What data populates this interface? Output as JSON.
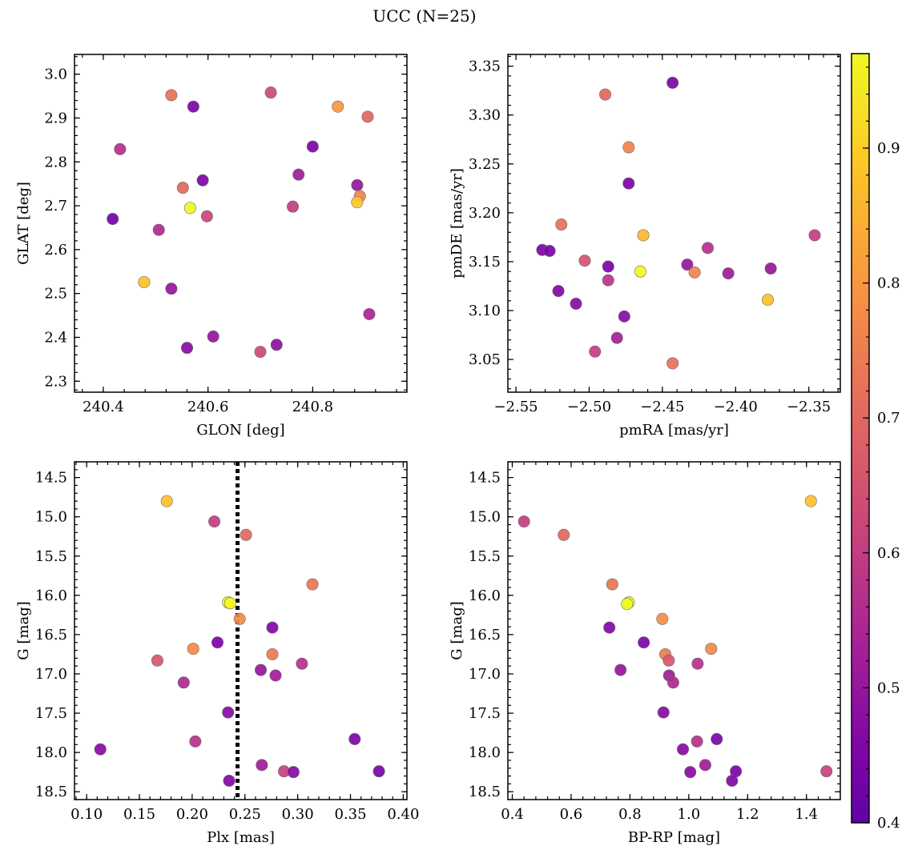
{
  "figure": {
    "title": "UCC (N=25)"
  },
  "colorbar": {
    "min": 0.4,
    "max": 0.97,
    "colormap": "plasma",
    "ticks": [
      0.4,
      0.5,
      0.6,
      0.7,
      0.8,
      0.9
    ],
    "tick_labels": [
      "0.4",
      "0.5",
      "0.6",
      "0.7",
      "0.8",
      "0.9"
    ]
  },
  "chart_data": [
    {
      "type": "scatter",
      "id": "glon-glat",
      "xlabel": "GLON [deg]",
      "ylabel": "GLAT [deg]",
      "xlim": [
        240.345,
        240.98
      ],
      "ylim": [
        2.275,
        3.045
      ],
      "y_inverted": false,
      "xticks": [
        240.4,
        240.6,
        240.8
      ],
      "xtick_labels": [
        "240.4",
        "240.6",
        "240.8"
      ],
      "yticks": [
        2.3,
        2.4,
        2.5,
        2.6,
        2.7,
        2.8,
        2.9,
        3.0
      ],
      "ytick_labels": [
        "2.3",
        "2.4",
        "2.5",
        "2.6",
        "2.7",
        "2.8",
        "2.9",
        "3.0"
      ],
      "points": [
        {
          "x": 240.53,
          "y": 2.952,
          "c": 0.72
        },
        {
          "x": 240.572,
          "y": 2.926,
          "c": 0.45
        },
        {
          "x": 240.72,
          "y": 2.958,
          "c": 0.63
        },
        {
          "x": 240.848,
          "y": 2.926,
          "c": 0.8
        },
        {
          "x": 240.905,
          "y": 2.903,
          "c": 0.7
        },
        {
          "x": 240.432,
          "y": 2.829,
          "c": 0.57
        },
        {
          "x": 240.8,
          "y": 2.835,
          "c": 0.45
        },
        {
          "x": 240.773,
          "y": 2.771,
          "c": 0.52
        },
        {
          "x": 240.59,
          "y": 2.758,
          "c": 0.45
        },
        {
          "x": 240.885,
          "y": 2.747,
          "c": 0.5
        },
        {
          "x": 240.552,
          "y": 2.741,
          "c": 0.7
        },
        {
          "x": 240.89,
          "y": 2.722,
          "c": 0.76
        },
        {
          "x": 240.885,
          "y": 2.708,
          "c": 0.89
        },
        {
          "x": 240.566,
          "y": 2.695,
          "c": 0.97
        },
        {
          "x": 240.762,
          "y": 2.698,
          "c": 0.6
        },
        {
          "x": 240.598,
          "y": 2.676,
          "c": 0.62
        },
        {
          "x": 240.418,
          "y": 2.67,
          "c": 0.43
        },
        {
          "x": 240.506,
          "y": 2.645,
          "c": 0.55
        },
        {
          "x": 240.478,
          "y": 2.526,
          "c": 0.88
        },
        {
          "x": 240.53,
          "y": 2.511,
          "c": 0.5
        },
        {
          "x": 240.908,
          "y": 2.453,
          "c": 0.54
        },
        {
          "x": 240.61,
          "y": 2.402,
          "c": 0.5
        },
        {
          "x": 240.56,
          "y": 2.376,
          "c": 0.47
        },
        {
          "x": 240.731,
          "y": 2.383,
          "c": 0.48
        },
        {
          "x": 240.7,
          "y": 2.367,
          "c": 0.63
        }
      ]
    },
    {
      "type": "scatter",
      "id": "pmra-pmde",
      "xlabel": "pmRA [mas/yr]",
      "ylabel": "pmDE [mas/yr]",
      "xlim": [
        -2.5555,
        -2.3285
      ],
      "ylim": [
        3.0165,
        3.362
      ],
      "y_inverted": false,
      "xticks": [
        -2.55,
        -2.5,
        -2.45,
        -2.4,
        -2.35
      ],
      "xtick_labels": [
        "−2.55",
        "−2.50",
        "−2.45",
        "−2.40",
        "−2.35"
      ],
      "yticks": [
        3.05,
        3.1,
        3.15,
        3.2,
        3.25,
        3.3,
        3.35
      ],
      "ytick_labels": [
        "3.05",
        "3.10",
        "3.15",
        "3.20",
        "3.25",
        "3.30",
        "3.35"
      ],
      "points": [
        {
          "x": -2.443,
          "y": 3.333,
          "c": 0.45
        },
        {
          "x": -2.489,
          "y": 3.321,
          "c": 0.7
        },
        {
          "x": -2.473,
          "y": 3.267,
          "c": 0.76
        },
        {
          "x": -2.473,
          "y": 3.23,
          "c": 0.45
        },
        {
          "x": -2.519,
          "y": 3.188,
          "c": 0.72
        },
        {
          "x": -2.463,
          "y": 3.177,
          "c": 0.86
        },
        {
          "x": -2.346,
          "y": 3.177,
          "c": 0.6
        },
        {
          "x": -2.419,
          "y": 3.164,
          "c": 0.57
        },
        {
          "x": -2.532,
          "y": 3.162,
          "c": 0.45
        },
        {
          "x": -2.527,
          "y": 3.161,
          "c": 0.45
        },
        {
          "x": -2.503,
          "y": 3.151,
          "c": 0.65
        },
        {
          "x": -2.433,
          "y": 3.147,
          "c": 0.5
        },
        {
          "x": -2.487,
          "y": 3.145,
          "c": 0.44
        },
        {
          "x": -2.376,
          "y": 3.143,
          "c": 0.5
        },
        {
          "x": -2.465,
          "y": 3.14,
          "c": 0.97
        },
        {
          "x": -2.428,
          "y": 3.139,
          "c": 0.76
        },
        {
          "x": -2.405,
          "y": 3.138,
          "c": 0.52
        },
        {
          "x": -2.487,
          "y": 3.131,
          "c": 0.58
        },
        {
          "x": -2.521,
          "y": 3.12,
          "c": 0.46
        },
        {
          "x": -2.378,
          "y": 3.111,
          "c": 0.88
        },
        {
          "x": -2.509,
          "y": 3.107,
          "c": 0.47
        },
        {
          "x": -2.476,
          "y": 3.094,
          "c": 0.47
        },
        {
          "x": -2.481,
          "y": 3.072,
          "c": 0.53
        },
        {
          "x": -2.496,
          "y": 3.058,
          "c": 0.6
        },
        {
          "x": -2.443,
          "y": 3.046,
          "c": 0.72
        }
      ]
    },
    {
      "type": "scatter",
      "id": "plx-g",
      "xlabel": "Plx [mas]",
      "ylabel": "G [mag]",
      "xlim": [
        0.0885,
        0.4035
      ],
      "ylim": [
        18.6,
        14.3
      ],
      "y_inverted": true,
      "xticks": [
        0.1,
        0.15,
        0.2,
        0.25,
        0.3,
        0.35,
        0.4
      ],
      "xtick_labels": [
        "0.10",
        "0.15",
        "0.20",
        "0.25",
        "0.30",
        "0.35",
        "0.40"
      ],
      "yticks": [
        14.5,
        15.0,
        15.5,
        16.0,
        16.5,
        17.0,
        17.5,
        18.0,
        18.5
      ],
      "ytick_labels": [
        "14.5",
        "15.0",
        "15.5",
        "16.0",
        "16.5",
        "17.0",
        "17.5",
        "18.0",
        "18.5"
      ],
      "vline": {
        "x": 0.243,
        "style": "dotted"
      },
      "points": [
        {
          "x": 0.176,
          "y": 14.8,
          "c": 0.88
        },
        {
          "x": 0.221,
          "y": 15.06,
          "c": 0.6
        },
        {
          "x": 0.251,
          "y": 15.23,
          "c": 0.7
        },
        {
          "x": 0.314,
          "y": 15.86,
          "c": 0.73
        },
        {
          "x": 0.234,
          "y": 16.09,
          "c": 0.96
        },
        {
          "x": 0.236,
          "y": 16.1,
          "c": 0.97
        },
        {
          "x": 0.245,
          "y": 16.3,
          "c": 0.78
        },
        {
          "x": 0.276,
          "y": 16.41,
          "c": 0.46
        },
        {
          "x": 0.224,
          "y": 16.6,
          "c": 0.45
        },
        {
          "x": 0.201,
          "y": 16.68,
          "c": 0.77
        },
        {
          "x": 0.276,
          "y": 16.75,
          "c": 0.74
        },
        {
          "x": 0.167,
          "y": 16.83,
          "c": 0.66
        },
        {
          "x": 0.304,
          "y": 16.87,
          "c": 0.57
        },
        {
          "x": 0.265,
          "y": 16.95,
          "c": 0.5
        },
        {
          "x": 0.279,
          "y": 17.02,
          "c": 0.52
        },
        {
          "x": 0.192,
          "y": 17.11,
          "c": 0.55
        },
        {
          "x": 0.234,
          "y": 17.49,
          "c": 0.47
        },
        {
          "x": 0.354,
          "y": 17.83,
          "c": 0.45
        },
        {
          "x": 0.203,
          "y": 17.86,
          "c": 0.57
        },
        {
          "x": 0.113,
          "y": 17.96,
          "c": 0.47
        },
        {
          "x": 0.266,
          "y": 18.16,
          "c": 0.52
        },
        {
          "x": 0.287,
          "y": 18.24,
          "c": 0.61
        },
        {
          "x": 0.377,
          "y": 18.24,
          "c": 0.44
        },
        {
          "x": 0.296,
          "y": 18.25,
          "c": 0.47
        },
        {
          "x": 0.235,
          "y": 18.36,
          "c": 0.46
        }
      ]
    },
    {
      "type": "scatter",
      "id": "bprp-g",
      "xlabel": "BP-RP [mag]",
      "ylabel": "G [mag]",
      "xlim": [
        0.385,
        1.515
      ],
      "ylim": [
        18.6,
        14.3
      ],
      "y_inverted": true,
      "xticks": [
        0.4,
        0.6,
        0.8,
        1.0,
        1.2,
        1.4
      ],
      "xtick_labels": [
        "0.4",
        "0.6",
        "0.8",
        "1.0",
        "1.2",
        "1.4"
      ],
      "yticks": [
        14.5,
        15.0,
        15.5,
        16.0,
        16.5,
        17.0,
        17.5,
        18.0,
        18.5
      ],
      "ytick_labels": [
        "14.5",
        "15.0",
        "15.5",
        "16.0",
        "16.5",
        "17.0",
        "17.5",
        "18.0",
        "18.5"
      ],
      "points": [
        {
          "x": 1.415,
          "y": 14.8,
          "c": 0.88
        },
        {
          "x": 0.44,
          "y": 15.06,
          "c": 0.6
        },
        {
          "x": 0.575,
          "y": 15.23,
          "c": 0.7
        },
        {
          "x": 0.74,
          "y": 15.86,
          "c": 0.73
        },
        {
          "x": 0.796,
          "y": 16.09,
          "c": 0.96
        },
        {
          "x": 0.79,
          "y": 16.11,
          "c": 0.97
        },
        {
          "x": 0.91,
          "y": 16.3,
          "c": 0.78
        },
        {
          "x": 0.73,
          "y": 16.41,
          "c": 0.46
        },
        {
          "x": 0.847,
          "y": 16.6,
          "c": 0.45
        },
        {
          "x": 1.076,
          "y": 16.68,
          "c": 0.77
        },
        {
          "x": 0.92,
          "y": 16.75,
          "c": 0.74
        },
        {
          "x": 0.932,
          "y": 16.83,
          "c": 0.66
        },
        {
          "x": 1.03,
          "y": 16.87,
          "c": 0.57
        },
        {
          "x": 0.768,
          "y": 16.95,
          "c": 0.5
        },
        {
          "x": 0.933,
          "y": 17.02,
          "c": 0.52
        },
        {
          "x": 0.947,
          "y": 17.11,
          "c": 0.55
        },
        {
          "x": 0.914,
          "y": 17.49,
          "c": 0.47
        },
        {
          "x": 1.095,
          "y": 17.83,
          "c": 0.45
        },
        {
          "x": 1.028,
          "y": 17.86,
          "c": 0.57
        },
        {
          "x": 0.98,
          "y": 17.96,
          "c": 0.47
        },
        {
          "x": 1.056,
          "y": 18.16,
          "c": 0.52
        },
        {
          "x": 1.468,
          "y": 18.24,
          "c": 0.61
        },
        {
          "x": 1.16,
          "y": 18.24,
          "c": 0.44
        },
        {
          "x": 1.005,
          "y": 18.25,
          "c": 0.47
        },
        {
          "x": 1.147,
          "y": 18.36,
          "c": 0.46
        }
      ]
    }
  ]
}
